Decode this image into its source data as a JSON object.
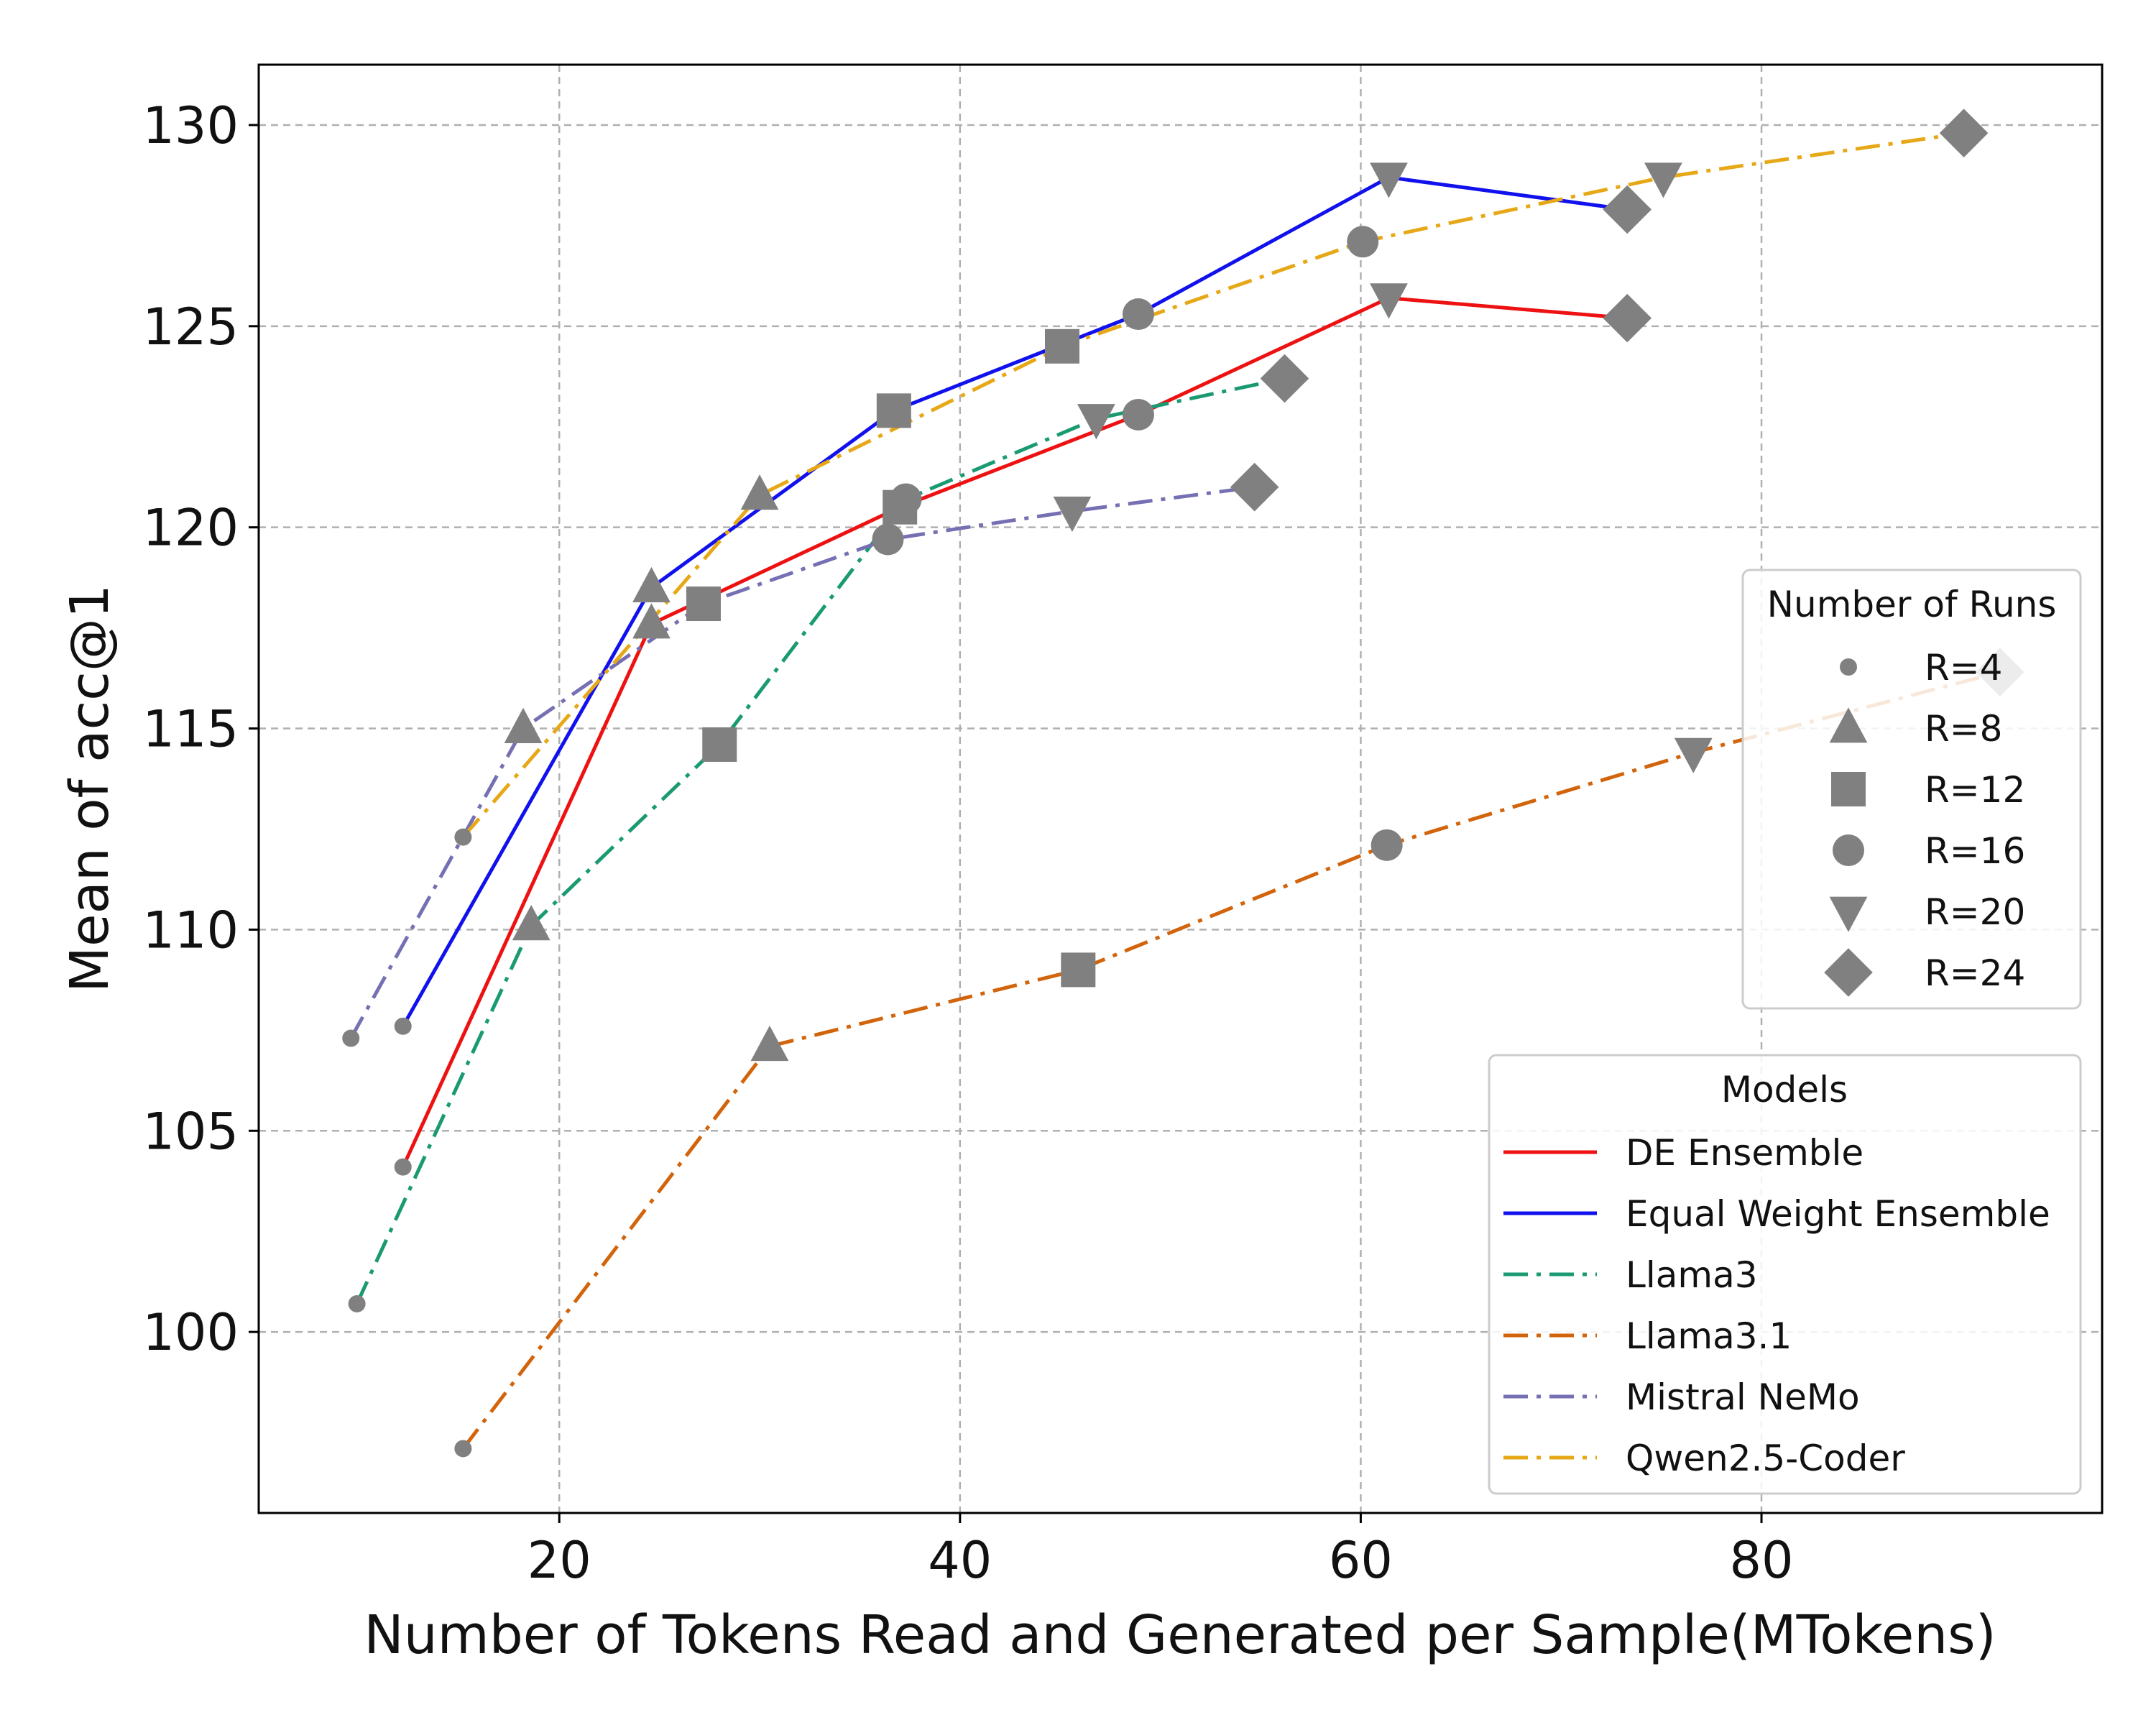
{
  "chart_data": {
    "type": "line",
    "xlabel": "Number of Tokens Read and Generated per Sample(MTokens)",
    "ylabel": "Mean of acc@1",
    "xlim": [
      5,
      97
    ],
    "ylim": [
      95.5,
      131.5
    ],
    "x_ticks": [
      20,
      40,
      60,
      80
    ],
    "x_tick_labels": [
      "20",
      "40",
      "60",
      "80"
    ],
    "y_ticks": [
      100,
      105,
      110,
      115,
      120,
      125,
      130
    ],
    "y_tick_labels": [
      "100",
      "105",
      "110",
      "115",
      "120",
      "125",
      "130"
    ],
    "grid": true,
    "marker_color": "#808080",
    "run_legend": {
      "title": "Number of Runs",
      "placement": "center-right",
      "entries": [
        {
          "label": "R=4",
          "marker": "small-circle"
        },
        {
          "label": "R=8",
          "marker": "triangle-up"
        },
        {
          "label": "R=12",
          "marker": "square"
        },
        {
          "label": "R=16",
          "marker": "circle"
        },
        {
          "label": "R=20",
          "marker": "triangle-down"
        },
        {
          "label": "R=24",
          "marker": "diamond"
        }
      ]
    },
    "model_legend": {
      "title": "Models",
      "placement": "lower-right"
    },
    "series": [
      {
        "name": "DE Ensemble",
        "color": "#ee1111",
        "style": "solid",
        "points": [
          {
            "x": 12.2,
            "y": 104.1,
            "r": "R=4"
          },
          {
            "x": 24.6,
            "y": 117.6,
            "r": "R=8"
          },
          {
            "x": 37.0,
            "y": 120.5,
            "r": "R=12"
          },
          {
            "x": 48.9,
            "y": 122.8,
            "r": "R=16"
          },
          {
            "x": 61.4,
            "y": 125.7,
            "r": "R=20"
          },
          {
            "x": 73.3,
            "y": 125.2,
            "r": "R=24"
          }
        ]
      },
      {
        "name": "Equal Weight Ensemble",
        "color": "#1111ee",
        "style": "solid",
        "points": [
          {
            "x": 12.2,
            "y": 107.6,
            "r": "R=4"
          },
          {
            "x": 24.6,
            "y": 118.5,
            "r": "R=8"
          },
          {
            "x": 36.7,
            "y": 122.9,
            "r": "R=12"
          },
          {
            "x": 48.9,
            "y": 125.3,
            "r": "R=16"
          },
          {
            "x": 61.4,
            "y": 128.7,
            "r": "R=20"
          },
          {
            "x": 73.3,
            "y": 127.9,
            "r": "R=24"
          }
        ]
      },
      {
        "name": "Llama3",
        "color": "#1a9a72",
        "style": "dashdot",
        "points": [
          {
            "x": 9.9,
            "y": 100.7,
            "r": "R=4"
          },
          {
            "x": 18.6,
            "y": 110.1,
            "r": "R=8"
          },
          {
            "x": 28.0,
            "y": 114.6,
            "r": "R=12"
          },
          {
            "x": 37.3,
            "y": 120.7,
            "r": "R=16"
          },
          {
            "x": 46.8,
            "y": 122.7,
            "r": "R=20"
          },
          {
            "x": 56.2,
            "y": 123.7,
            "r": "R=24"
          }
        ]
      },
      {
        "name": "Llama3.1",
        "color": "#d2640c",
        "style": "dashdot",
        "points": [
          {
            "x": 15.2,
            "y": 97.1,
            "r": "R=4"
          },
          {
            "x": 30.5,
            "y": 107.1,
            "r": "R=8"
          },
          {
            "x": 45.9,
            "y": 109.0,
            "r": "R=12"
          },
          {
            "x": 61.3,
            "y": 112.1,
            "r": "R=16"
          },
          {
            "x": 76.6,
            "y": 114.4,
            "r": "R=20"
          },
          {
            "x": 91.9,
            "y": 116.4,
            "r": "R=24"
          }
        ]
      },
      {
        "name": "Mistral NeMo",
        "color": "#7570b3",
        "style": "dashdot",
        "points": [
          {
            "x": 9.6,
            "y": 107.3,
            "r": "R=4"
          },
          {
            "x": 18.2,
            "y": 115.0,
            "r": "R=8"
          },
          {
            "x": 27.2,
            "y": 118.1,
            "r": "R=12"
          },
          {
            "x": 36.4,
            "y": 119.7,
            "r": "R=16"
          },
          {
            "x": 45.6,
            "y": 120.4,
            "r": "R=20"
          },
          {
            "x": 54.7,
            "y": 121.0,
            "r": "R=24"
          }
        ]
      },
      {
        "name": "Qwen2.5-Coder",
        "color": "#e6a817",
        "style": "dashdot",
        "points": [
          {
            "x": 15.2,
            "y": 112.3,
            "r": "R=4"
          },
          {
            "x": 30.0,
            "y": 120.8,
            "r": "R=8"
          },
          {
            "x": 45.1,
            "y": 124.5,
            "r": "R=12"
          },
          {
            "x": 60.1,
            "y": 127.1,
            "r": "R=16"
          },
          {
            "x": 75.1,
            "y": 128.7,
            "r": "R=20"
          },
          {
            "x": 90.1,
            "y": 129.8,
            "r": "R=24"
          }
        ]
      }
    ]
  }
}
